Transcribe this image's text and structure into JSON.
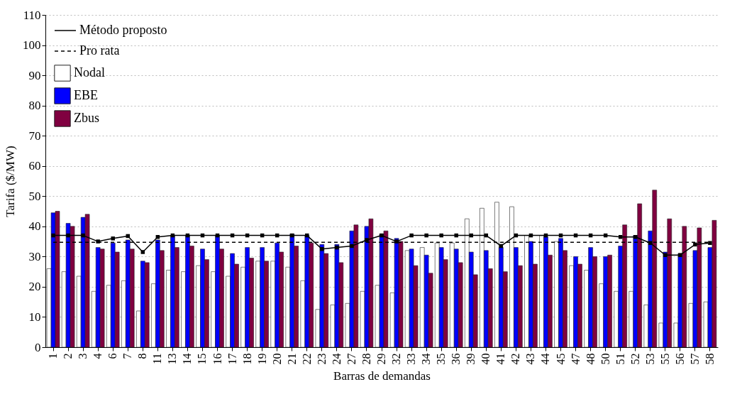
{
  "chart_data": {
    "type": "bar",
    "xlabel": "Barras de demandas",
    "ylabel": "Tarifa ($/MW)",
    "categories": [
      "1",
      "2",
      "3",
      "4",
      "6",
      "7",
      "8",
      "11",
      "13",
      "14",
      "15",
      "16",
      "17",
      "18",
      "19",
      "20",
      "21",
      "22",
      "23",
      "24",
      "27",
      "28",
      "29",
      "32",
      "33",
      "34",
      "35",
      "36",
      "39",
      "40",
      "41",
      "42",
      "43",
      "44",
      "45",
      "47",
      "48",
      "50",
      "51",
      "52",
      "53",
      "55",
      "56",
      "57",
      "58"
    ],
    "ylim": [
      0,
      110
    ],
    "yticks": [
      0,
      10,
      20,
      30,
      40,
      50,
      60,
      70,
      80,
      90,
      100,
      110
    ],
    "grid": "y",
    "legend": "top left",
    "series": [
      {
        "name": "Método proposto",
        "type": "line",
        "color": "#000000",
        "marker": "square",
        "line_style": "solid",
        "values": [
          37,
          37,
          37,
          35,
          36,
          36.8,
          31.5,
          36.5,
          37,
          37,
          37,
          37,
          37,
          37,
          37,
          37,
          37,
          37,
          32.5,
          33,
          33.5,
          35.5,
          37,
          35,
          37,
          37,
          37,
          37,
          37,
          37,
          33.5,
          37,
          37,
          37,
          37,
          37,
          37,
          37,
          36.5,
          36.5,
          34.5,
          30.5,
          30.5,
          34,
          34.5
        ]
      },
      {
        "name": "Pro rata",
        "type": "line",
        "color": "#000000",
        "marker": "none",
        "line_style": "dashed",
        "values": [
          34.7,
          34.7,
          34.7,
          34.7,
          34.7,
          34.7,
          34.7,
          34.7,
          34.7,
          34.7,
          34.7,
          34.7,
          34.7,
          34.7,
          34.7,
          34.7,
          34.7,
          34.7,
          34.7,
          34.7,
          34.7,
          34.7,
          34.7,
          34.7,
          34.7,
          34.7,
          34.7,
          34.7,
          34.7,
          34.7,
          34.7,
          34.7,
          34.7,
          34.7,
          34.7,
          34.7,
          34.7,
          34.7,
          34.7,
          34.7,
          34.7,
          34.7,
          34.7,
          34.7,
          34.7
        ]
      },
      {
        "name": "Nodal",
        "color": "#ffffff",
        "values": [
          26,
          25,
          23.5,
          18.5,
          20.5,
          22,
          12,
          21,
          25.5,
          25,
          27,
          25,
          23.5,
          26.5,
          28.5,
          28.5,
          26.5,
          22,
          12.5,
          14,
          14.5,
          18.5,
          20.5,
          18,
          32,
          33,
          34.5,
          34.5,
          42.5,
          46,
          48,
          46.5,
          37,
          37,
          35,
          27,
          25.5,
          21,
          18.5,
          18.5,
          14,
          8,
          8,
          14.5,
          15
        ]
      },
      {
        "name": "EBE",
        "color": "#0000ff",
        "values": [
          44.5,
          41,
          43,
          33,
          34.5,
          35.5,
          28.5,
          35.5,
          37,
          37,
          32.5,
          37,
          31,
          33,
          33,
          34.5,
          37.5,
          37,
          34,
          34,
          38.5,
          40,
          37.5,
          36,
          32.5,
          30.5,
          33,
          32.5,
          31.5,
          32,
          33,
          33,
          35,
          36.5,
          36,
          30,
          33,
          30,
          33.5,
          37,
          38.5,
          31.5,
          31,
          32,
          33
        ]
      },
      {
        "name": "Zbus",
        "color": "#800040",
        "values": [
          45,
          40,
          44,
          32.5,
          31.5,
          32.5,
          28,
          32,
          33,
          33.5,
          29,
          32.5,
          27.5,
          29.5,
          28.5,
          31.5,
          33.5,
          34.5,
          31,
          28,
          40.5,
          42.5,
          38.5,
          35,
          27,
          24.5,
          29,
          28,
          24,
          26,
          25,
          27,
          27.5,
          30.5,
          32,
          27.5,
          30,
          30.5,
          40.5,
          47.5,
          52,
          42.5,
          40,
          39.5,
          42
        ]
      }
    ]
  }
}
